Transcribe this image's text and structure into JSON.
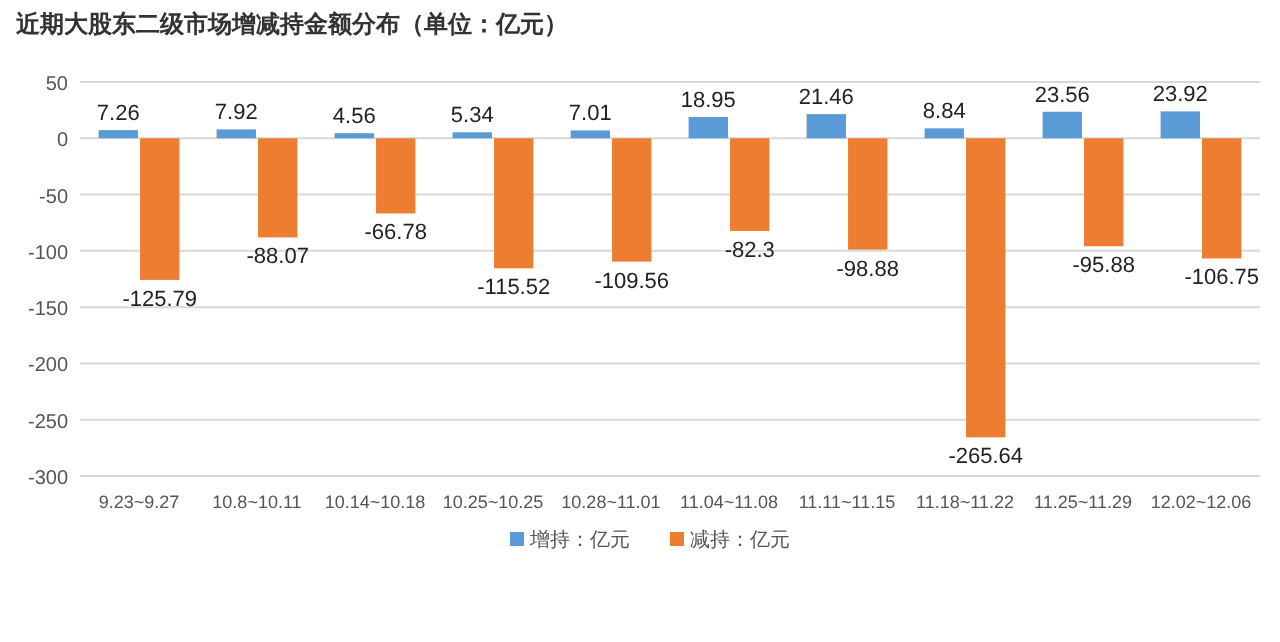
{
  "chart_data": {
    "type": "bar",
    "title": "近期大股东二级市场增减持金额分布（单位：亿元）",
    "categories": [
      "9.23~9.27",
      "10.8~10.11",
      "10.14~10.18",
      "10.25~10.25",
      "10.28~11.01",
      "11.04~11.08",
      "11.11~11.15",
      "11.18~11.22",
      "11.25~11.29",
      "12.02~12.06"
    ],
    "series": [
      {
        "name": "增持：亿元",
        "color": "#5b9bd5",
        "values": [
          7.26,
          7.92,
          4.56,
          5.34,
          7.01,
          18.95,
          21.46,
          8.84,
          23.56,
          23.92
        ]
      },
      {
        "name": "减持：亿元",
        "color": "#ed7d31",
        "values": [
          -125.79,
          -88.07,
          -66.78,
          -115.52,
          -109.56,
          -82.3,
          -98.88,
          -265.64,
          -95.88,
          -106.75
        ]
      }
    ],
    "ylim": [
      -300,
      50
    ],
    "yticks": [
      -300,
      -250,
      -200,
      -150,
      -100,
      -50,
      0,
      50
    ],
    "grid": "y",
    "legend": "bottom",
    "data_labels": true
  }
}
